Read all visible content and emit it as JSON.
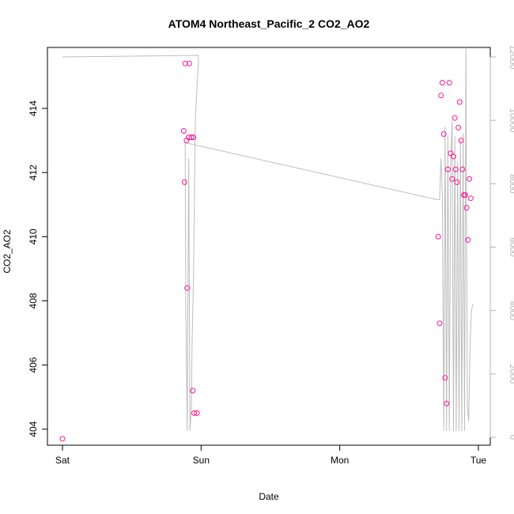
{
  "chart_data": {
    "type": "scatter",
    "title": "ATOM4 Northeast_Pacific_2 CO2_AO2",
    "xlabel": "Date",
    "ylabel": "CO2_AO2",
    "x_type": "date",
    "x_range_days": [
      0,
      3
    ],
    "x_tick_labels": [
      {
        "day": 0,
        "label": "Sat"
      },
      {
        "day": 1,
        "label": "Sun"
      },
      {
        "day": 2,
        "label": "Mon"
      },
      {
        "day": 3,
        "label": "Tue"
      }
    ],
    "ylim": [
      403.5,
      415.9
    ],
    "y_ticks": [
      404,
      406,
      408,
      410,
      412,
      414
    ],
    "y2lim": [
      -250,
      12300
    ],
    "y2_ticks": [
      0,
      2000,
      4000,
      6000,
      8000,
      10000,
      12000
    ],
    "grid": false,
    "colors": {
      "points": "#ff1493",
      "line": "#bdbdbd",
      "secondary_axis": "#b4b4b4"
    },
    "series": [
      {
        "kind": "points",
        "axis": "left",
        "x": [
          0.0,
          0.885,
          0.895,
          0.91,
          0.93,
          0.915,
          0.94,
          0.95,
          0.875,
          0.88,
          0.9,
          0.945,
          0.97,
          2.71,
          2.72,
          2.73,
          2.74,
          2.75,
          2.76,
          2.77,
          2.78,
          2.79,
          2.8,
          2.81,
          2.82,
          2.83,
          2.835,
          2.845,
          2.855,
          2.865,
          2.875,
          2.885,
          2.895,
          2.905,
          2.915,
          2.925,
          2.935,
          2.945
        ],
        "y": [
          403.7,
          415.4,
          413.0,
          413.1,
          413.1,
          415.4,
          405.2,
          404.5,
          413.3,
          411.7,
          408.4,
          413.1,
          404.5,
          410.0,
          407.3,
          414.4,
          414.8,
          413.2,
          405.6,
          404.8,
          412.1,
          414.8,
          412.6,
          411.8,
          412.5,
          413.7,
          412.1,
          411.7,
          413.4,
          414.2,
          413.0,
          412.1,
          411.3,
          411.3,
          410.9,
          409.9,
          411.8,
          411.2
        ]
      },
      {
        "kind": "line",
        "axis": "right",
        "x": [
          0.0,
          0.98,
          0.98,
          0.97,
          0.96,
          0.955,
          0.95,
          0.945,
          0.935,
          0.93,
          0.92,
          0.91,
          0.9,
          0.89,
          0.885,
          0.88,
          2.7,
          2.72,
          2.73,
          2.74,
          2.75,
          2.76,
          2.77,
          2.78,
          2.79,
          2.8,
          2.81,
          2.82,
          2.83,
          2.84,
          2.85,
          2.86,
          2.87,
          2.88,
          2.89,
          2.9,
          2.91,
          2.92,
          2.93,
          2.94,
          2.95,
          2.96
        ],
        "y": [
          12000,
          12050,
          11800,
          11000,
          10200,
          9000,
          7000,
          5000,
          3000,
          1000,
          200,
          8800,
          200,
          4000,
          9300,
          9300,
          7500,
          7500,
          8800,
          7600,
          200,
          9800,
          200,
          9500,
          200,
          8600,
          10000,
          200,
          9500,
          200,
          8700,
          200,
          9400,
          200,
          9600,
          200,
          12300,
          1000,
          500,
          3000,
          4000,
          4200
        ]
      }
    ]
  }
}
